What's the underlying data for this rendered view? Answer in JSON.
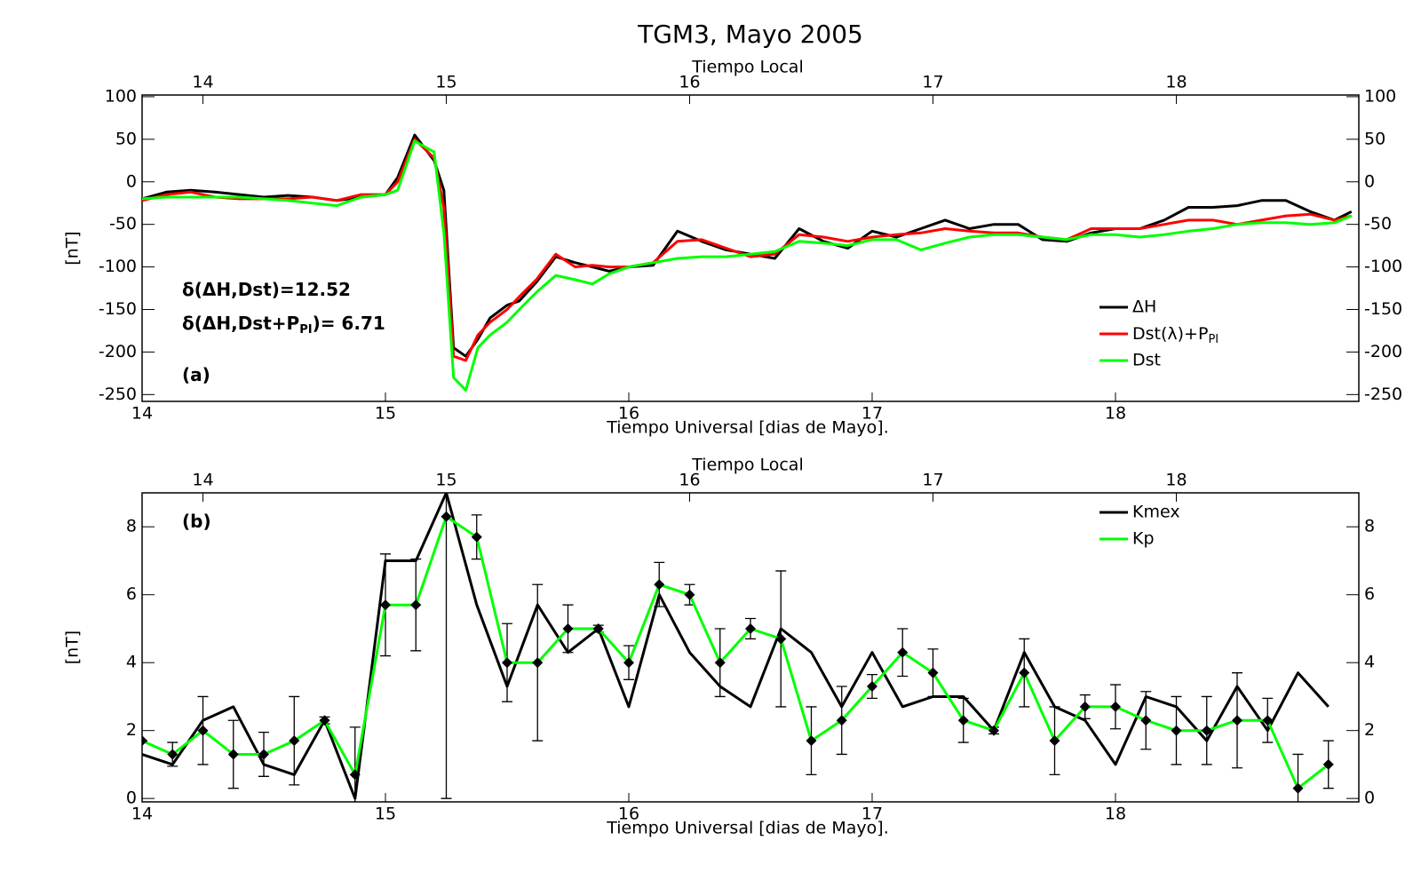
{
  "chart_data": [
    {
      "type": "line",
      "title": "TGM3, Mayo 2005",
      "xlabel": "Tiempo Universal [dias de Mayo].",
      "x2label": "Tiempo Local",
      "ylabel": "[nT]",
      "xlim": [
        14,
        19
      ],
      "xticks": [
        14,
        15,
        16,
        17,
        18
      ],
      "x2lim": [
        13.75,
        18.75
      ],
      "x2ticks": [
        14,
        15,
        16,
        17,
        18
      ],
      "ylim": [
        -258,
        102
      ],
      "yticks": [
        -250,
        -200,
        -150,
        -100,
        -50,
        0,
        50,
        100
      ],
      "x": [
        14.0,
        14.1,
        14.2,
        14.3,
        14.4,
        14.5,
        14.6,
        14.7,
        14.8,
        14.9,
        15.0,
        15.05,
        15.12,
        15.2,
        15.24,
        15.28,
        15.33,
        15.38,
        15.43,
        15.5,
        15.55,
        15.62,
        15.7,
        15.78,
        15.85,
        15.92,
        16.0,
        16.1,
        16.2,
        16.3,
        16.4,
        16.5,
        16.6,
        16.7,
        16.8,
        16.9,
        17.0,
        17.1,
        17.2,
        17.3,
        17.4,
        17.5,
        17.6,
        17.7,
        17.8,
        17.9,
        18.0,
        18.1,
        18.2,
        18.3,
        18.4,
        18.5,
        18.6,
        18.7,
        18.8,
        18.9,
        18.97
      ],
      "series": [
        {
          "name": "ΔH",
          "color": "#000000",
          "values": [
            -20,
            -12,
            -10,
            -12,
            -15,
            -18,
            -16,
            -18,
            -22,
            -18,
            -15,
            5,
            55,
            25,
            -10,
            -195,
            -205,
            -185,
            -160,
            -145,
            -140,
            -118,
            -88,
            -95,
            -100,
            -105,
            -100,
            -98,
            -58,
            -70,
            -80,
            -85,
            -90,
            -55,
            -70,
            -78,
            -58,
            -65,
            -55,
            -45,
            -55,
            -50,
            -50,
            -68,
            -70,
            -60,
            -55,
            -55,
            -45,
            -30,
            -30,
            -28,
            -22,
            -22,
            -35,
            -45,
            -35
          ]
        },
        {
          "name": "Dst(λ)+P",
          "name_sub": "PI",
          "color": "#ff0000",
          "values": [
            -22,
            -15,
            -12,
            -18,
            -20,
            -20,
            -20,
            -18,
            -22,
            -15,
            -15,
            0,
            50,
            28,
            -30,
            -205,
            -210,
            -180,
            -165,
            -150,
            -135,
            -115,
            -85,
            -100,
            -98,
            -100,
            -100,
            -95,
            -70,
            -68,
            -78,
            -88,
            -85,
            -62,
            -65,
            -70,
            -65,
            -62,
            -60,
            -55,
            -58,
            -60,
            -60,
            -65,
            -68,
            -55,
            -55,
            -55,
            -50,
            -45,
            -45,
            -50,
            -45,
            -40,
            -38,
            -45,
            -40
          ]
        },
        {
          "name": "Dst",
          "color": "#00ff00",
          "values": [
            -20,
            -18,
            -18,
            -18,
            -18,
            -20,
            -22,
            -25,
            -28,
            -18,
            -15,
            -10,
            48,
            35,
            -60,
            -230,
            -245,
            -195,
            -180,
            -165,
            -150,
            -130,
            -110,
            -115,
            -120,
            -108,
            -100,
            -95,
            -90,
            -88,
            -88,
            -85,
            -82,
            -70,
            -72,
            -75,
            -68,
            -68,
            -80,
            -72,
            -65,
            -62,
            -62,
            -65,
            -68,
            -62,
            -62,
            -65,
            -62,
            -58,
            -55,
            -50,
            -48,
            -48,
            -50,
            -48,
            -40
          ]
        }
      ],
      "annotations": [
        {
          "text": "δ(ΔH,Dst)=12.52"
        },
        {
          "text": "δ(ΔH,Dst+P",
          "sub": "PI",
          "tail": ")= 6.71"
        },
        {
          "text": "(a)"
        }
      ]
    },
    {
      "type": "line",
      "xlabel": "Tiempo Universal [dias de Mayo].",
      "x2label": "Tiempo Local",
      "ylabel": "[nT]",
      "xlim": [
        14,
        19
      ],
      "xticks": [
        14,
        15,
        16,
        17,
        18
      ],
      "x2lim": [
        13.75,
        18.75
      ],
      "x2ticks": [
        14,
        15,
        16,
        17,
        18
      ],
      "ylim": [
        -0.1,
        9
      ],
      "yticks": [
        0,
        2,
        4,
        6,
        8
      ],
      "x": [
        14,
        14.125,
        14.25,
        14.375,
        14.5,
        14.625,
        14.75,
        14.875,
        15,
        15.125,
        15.25,
        15.375,
        15.5,
        15.625,
        15.75,
        15.875,
        16,
        16.125,
        16.25,
        16.375,
        16.5,
        16.625,
        16.75,
        16.875,
        17,
        17.125,
        17.25,
        17.375,
        17.5,
        17.625,
        17.75,
        17.875,
        18,
        18.125,
        18.25,
        18.375,
        18.5,
        18.625,
        18.75,
        18.875
      ],
      "series": [
        {
          "name": "Kmex",
          "color": "#000000",
          "values": [
            1.3,
            1.0,
            2.3,
            2.7,
            1.0,
            0.7,
            2.3,
            0.0,
            7.0,
            7.0,
            9.0,
            5.7,
            3.3,
            5.7,
            4.3,
            5.0,
            2.7,
            6.0,
            4.3,
            3.3,
            2.7,
            5.0,
            4.3,
            2.7,
            4.3,
            2.7,
            3.0,
            3.0,
            2.0,
            4.3,
            2.7,
            2.3,
            1.0,
            3.0,
            2.7,
            1.7,
            3.3,
            2.0,
            3.7,
            2.7
          ]
        },
        {
          "name": "Kp",
          "color": "#00ff00",
          "values": [
            1.7,
            1.3,
            2.0,
            1.3,
            1.3,
            1.7,
            2.3,
            0.7,
            5.7,
            5.7,
            8.3,
            7.7,
            4.0,
            4.0,
            5.0,
            5.0,
            4.0,
            6.3,
            6.0,
            4.0,
            5.0,
            4.7,
            1.7,
            2.3,
            3.3,
            4.3,
            3.7,
            2.3,
            2.0,
            3.7,
            1.7,
            2.7,
            2.7,
            2.3,
            2.0,
            2.0,
            2.3,
            2.3,
            0.3,
            1.0
          ],
          "errors": [
            0,
            0.35,
            1.0,
            1.0,
            0.65,
            1.3,
            0.1,
            1.4,
            1.5,
            1.35,
            8.3,
            0.65,
            1.15,
            2.3,
            0.7,
            0.1,
            0.5,
            0.65,
            0.3,
            1.0,
            0.3,
            2.0,
            1.0,
            1.0,
            0.35,
            0.7,
            0.7,
            0.65,
            0.1,
            1.0,
            1.0,
            0.35,
            0.65,
            0.85,
            1.0,
            1.0,
            1.4,
            0.65,
            1.0,
            0.7
          ]
        }
      ],
      "annotations": [
        {
          "text": "(b)"
        }
      ]
    }
  ]
}
